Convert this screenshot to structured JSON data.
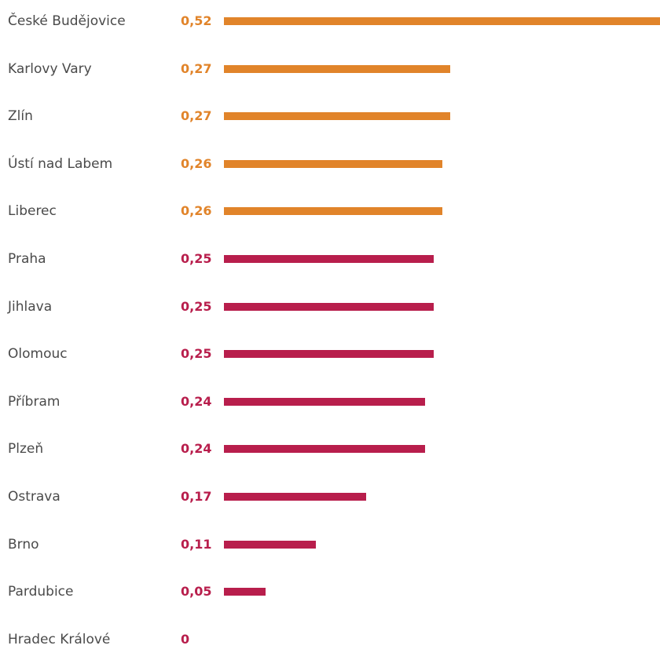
{
  "colors": {
    "highlight": "#E1842A",
    "base": "#B81E4C",
    "label": "#4A4A4A"
  },
  "chart_data": {
    "type": "bar",
    "orientation": "horizontal",
    "categories": [
      "České Budějovice",
      "Karlovy Vary",
      "Zlín",
      "Ústí nad Labem",
      "Liberec",
      "Praha",
      "Jihlava",
      "Olomouc",
      "Příbram",
      "Plzeň",
      "Ostrava",
      "Brno",
      "Pardubice",
      "Hradec Králové"
    ],
    "values": [
      0.52,
      0.27,
      0.27,
      0.26,
      0.26,
      0.25,
      0.25,
      0.25,
      0.24,
      0.24,
      0.17,
      0.11,
      0.05,
      0
    ],
    "value_labels": [
      "0,52",
      "0,27",
      "0,27",
      "0,26",
      "0,26",
      "0,25",
      "0,25",
      "0,25",
      "0,24",
      "0,24",
      "0,17",
      "0,11",
      "0,05",
      "0"
    ],
    "highlight": [
      true,
      true,
      true,
      true,
      true,
      false,
      false,
      false,
      false,
      false,
      false,
      false,
      false,
      false
    ],
    "xlim": [
      0,
      0.52
    ],
    "grid": false,
    "legend": "none"
  }
}
